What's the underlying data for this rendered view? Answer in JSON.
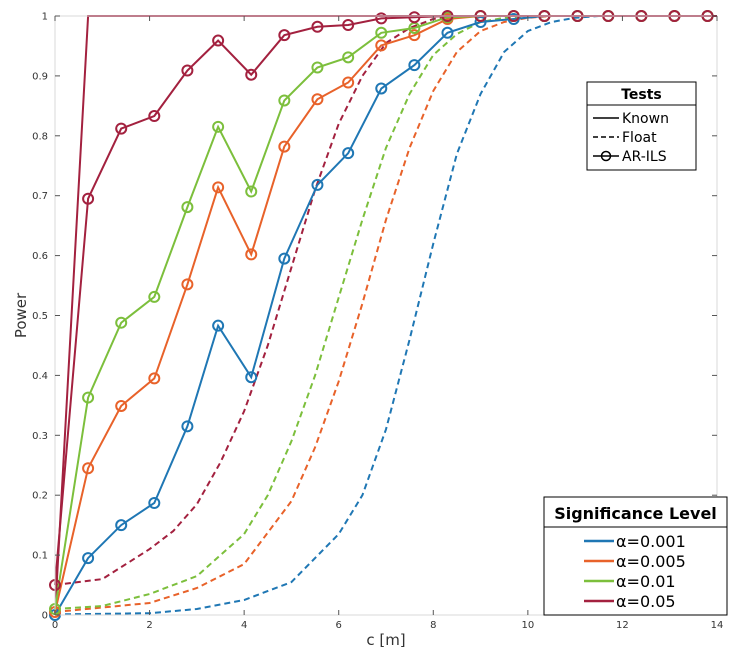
{
  "chart_data": {
    "type": "line",
    "xlabel": "c [m]",
    "ylabel": "Power",
    "xlim": [
      0,
      14
    ],
    "ylim": [
      0,
      1
    ],
    "x_ticks": [
      "0",
      "2",
      "4",
      "6",
      "8",
      "10",
      "12",
      "14"
    ],
    "y_ticks": [
      "0",
      "0.1",
      "0.2",
      "0.3",
      "0.4",
      "0.5",
      "0.6",
      "0.7",
      "0.8",
      "0.9",
      "1"
    ],
    "grid": false,
    "legends": [
      {
        "title": "Tests",
        "placement": "upper-right",
        "entries": [
          {
            "label": "Known",
            "style": "solid"
          },
          {
            "label": "Float",
            "style": "dashed"
          },
          {
            "label": "AR-ILS",
            "style": "circle-marker"
          }
        ]
      },
      {
        "title": "Significance Level",
        "placement": "lower-right",
        "entries": [
          {
            "label": "α=0.001",
            "color": "#1f77b4"
          },
          {
            "label": "α=0.005",
            "color": "#e8622a"
          },
          {
            "label": "α=0.01",
            "color": "#7cbf3c"
          },
          {
            "label": "α=0.05",
            "color": "#a3213f"
          }
        ]
      }
    ],
    "series": [
      {
        "level": "α=0.001",
        "color": "#1f77b4",
        "ar_ils": {
          "x": [
            0,
            0.7,
            1.4,
            2.1,
            2.8,
            3.45,
            4.15,
            4.85,
            5.55,
            6.2,
            6.9,
            7.6,
            8.3,
            9.0,
            9.7,
            10.35,
            11.05,
            11.7,
            12.4,
            13.1,
            13.8
          ],
          "y": [
            0.0,
            0.095,
            0.15,
            0.187,
            0.315,
            0.483,
            0.397,
            0.595,
            0.718,
            0.771,
            0.879,
            0.918,
            0.972,
            0.99,
            0.995,
            1,
            1,
            1,
            1,
            1,
            1
          ]
        },
        "float": {
          "x": [
            0,
            2,
            3,
            4,
            5,
            6,
            6.5,
            7,
            7.5,
            8,
            8.5,
            9,
            9.5,
            10,
            10.5,
            11,
            11.5,
            12
          ],
          "y": [
            0.001,
            0.003,
            0.01,
            0.025,
            0.055,
            0.135,
            0.2,
            0.31,
            0.46,
            0.62,
            0.77,
            0.87,
            0.94,
            0.975,
            0.99,
            0.997,
            1,
            1
          ]
        }
      },
      {
        "level": "α=0.005",
        "color": "#e8622a",
        "ar_ils": {
          "x": [
            0,
            0.7,
            1.4,
            2.1,
            2.8,
            3.45,
            4.15,
            4.85,
            5.55,
            6.2,
            6.9,
            7.6,
            8.3,
            9.0,
            9.7,
            10.35,
            11.05,
            11.7,
            12.4,
            13.1,
            13.8
          ],
          "y": [
            0.005,
            0.245,
            0.349,
            0.395,
            0.552,
            0.714,
            0.602,
            0.782,
            0.861,
            0.889,
            0.951,
            0.968,
            0.995,
            1,
            1,
            1,
            1,
            1,
            1,
            1,
            1
          ]
        },
        "float": {
          "x": [
            0,
            2,
            3,
            4,
            5,
            5.5,
            6,
            6.5,
            7,
            7.5,
            8,
            8.5,
            9,
            9.5,
            10,
            10.5,
            11
          ],
          "y": [
            0.005,
            0.02,
            0.045,
            0.085,
            0.19,
            0.28,
            0.39,
            0.52,
            0.66,
            0.78,
            0.875,
            0.94,
            0.975,
            0.99,
            0.997,
            1,
            1
          ]
        }
      },
      {
        "level": "α=0.01",
        "color": "#7cbf3c",
        "ar_ils": {
          "x": [
            0,
            0.7,
            1.4,
            2.1,
            2.8,
            3.45,
            4.15,
            4.85,
            5.55,
            6.2,
            6.9,
            7.6,
            8.3,
            9.0,
            9.7,
            10.35,
            11.05,
            11.7,
            12.4,
            13.1,
            13.8
          ],
          "y": [
            0.01,
            0.363,
            0.488,
            0.531,
            0.681,
            0.815,
            0.707,
            0.859,
            0.914,
            0.931,
            0.972,
            0.98,
            0.998,
            1,
            1,
            1,
            1,
            1,
            1,
            1,
            1
          ]
        },
        "float": {
          "x": [
            0,
            1,
            2,
            3,
            4,
            4.5,
            5,
            5.5,
            6,
            6.5,
            7,
            7.5,
            8,
            8.5,
            9,
            9.5,
            10
          ],
          "y": [
            0.01,
            0.015,
            0.035,
            0.065,
            0.135,
            0.2,
            0.29,
            0.4,
            0.53,
            0.66,
            0.78,
            0.87,
            0.935,
            0.97,
            0.99,
            0.997,
            1
          ]
        }
      },
      {
        "level": "α=0.05",
        "color": "#a3213f",
        "ar_ils": {
          "x": [
            0,
            0.7,
            1.4,
            2.1,
            2.8,
            3.45,
            4.15,
            4.85,
            5.55,
            6.2,
            6.9,
            7.6,
            8.3,
            9.0,
            9.7,
            10.35,
            11.05,
            11.7,
            12.4,
            13.1,
            13.8
          ],
          "y": [
            0.05,
            0.695,
            0.812,
            0.833,
            0.909,
            0.959,
            0.902,
            0.968,
            0.982,
            0.985,
            0.996,
            0.998,
            1,
            1,
            1,
            1,
            1,
            1,
            1,
            1,
            1
          ]
        },
        "float": {
          "x": [
            0,
            1,
            2,
            2.5,
            3,
            3.5,
            4,
            4.5,
            5,
            5.5,
            6,
            6.5,
            7,
            7.5,
            8,
            8.5
          ],
          "y": [
            0.05,
            0.06,
            0.11,
            0.14,
            0.185,
            0.255,
            0.34,
            0.45,
            0.58,
            0.71,
            0.82,
            0.9,
            0.955,
            0.98,
            0.995,
            1
          ]
        },
        "known": {
          "x": [
            0,
            0.7,
            14
          ],
          "y": [
            0,
            1,
            1
          ]
        }
      }
    ]
  }
}
